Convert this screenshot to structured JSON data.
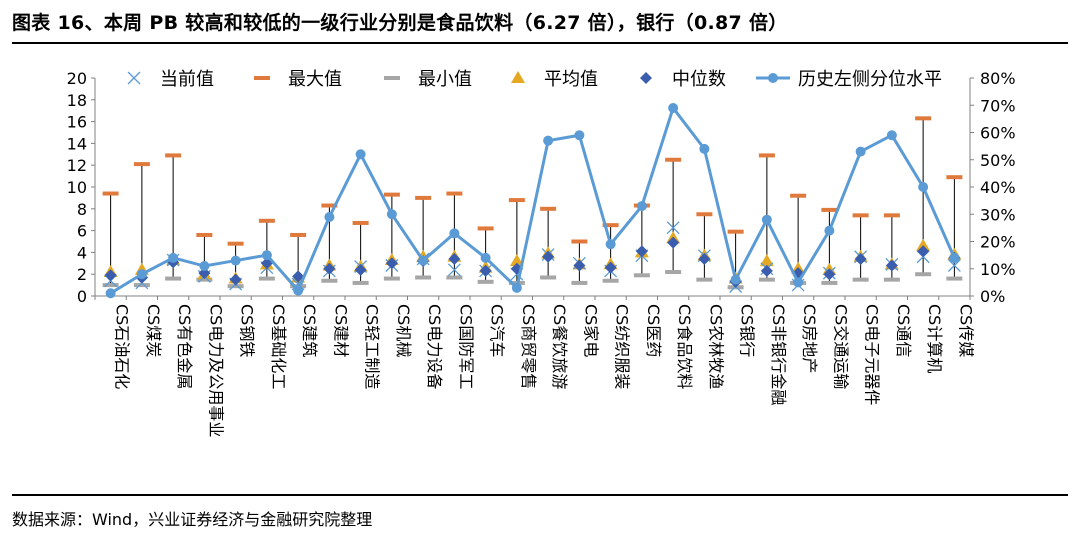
{
  "page": {
    "title": "图表 16、本周 PB 较高和较低的一级行业分别是食品饮料（6.27 倍），银行（0.87 倍）",
    "source": "数据来源：Wind，兴业证券经济与金融研究院整理"
  },
  "chart_data": {
    "type": "scatter",
    "categories": [
      "CS石油石化",
      "CS煤炭",
      "CS有色金属",
      "CS电力及公用事业",
      "CS钢铁",
      "CS基础化工",
      "CS建筑",
      "CS建材",
      "CS轻工制造",
      "CS机械",
      "CS电力设备",
      "CS国防军工",
      "CS汽车",
      "CS商贸零售",
      "CS餐饮旅游",
      "CS家电",
      "CS纺织服装",
      "CS医药",
      "CS食品饮料",
      "CS农林牧渔",
      "CS银行",
      "CS非银行金融",
      "CS房地产",
      "CS交通运输",
      "CS电子元器件",
      "CS通信",
      "CS计算机",
      "CS传媒"
    ],
    "y_left": {
      "ylim": [
        0,
        20
      ],
      "ticks": [
        "0",
        "2",
        "4",
        "6",
        "8",
        "10",
        "12",
        "14",
        "16",
        "18",
        "20"
      ]
    },
    "y_right": {
      "ylim": [
        0,
        80
      ],
      "ticks": [
        "0%",
        "10%",
        "20%",
        "30%",
        "40%",
        "50%",
        "60%",
        "70%",
        "80%"
      ]
    },
    "legend_position": "top",
    "series": [
      {
        "name": "当前值",
        "marker": "x",
        "color": "#5B9BD5",
        "axis": "left",
        "values": [
          1.4,
          1.2,
          3.3,
          1.8,
          1.1,
          2.6,
          1.1,
          2.3,
          2.7,
          2.8,
          3.4,
          2.4,
          2.3,
          2.0,
          3.8,
          3.0,
          2.3,
          3.7,
          6.27,
          3.7,
          0.87,
          2.5,
          1.0,
          2.1,
          3.6,
          2.9,
          3.6,
          2.8
        ]
      },
      {
        "name": "最大值",
        "marker": "dash",
        "color": "#E07A3C",
        "axis": "left",
        "values": [
          9.4,
          12.1,
          12.9,
          5.6,
          4.8,
          6.9,
          5.6,
          8.3,
          6.7,
          9.3,
          9.0,
          9.4,
          6.2,
          8.8,
          8.0,
          5.0,
          6.5,
          8.3,
          12.5,
          7.5,
          5.9,
          12.9,
          9.2,
          7.9,
          7.4,
          7.4,
          16.3,
          10.9
        ]
      },
      {
        "name": "最小值",
        "marker": "dash",
        "color": "#A6A6A6",
        "axis": "left",
        "values": [
          1.0,
          1.0,
          1.6,
          1.5,
          0.9,
          1.6,
          0.9,
          1.4,
          1.2,
          1.6,
          1.7,
          1.7,
          1.3,
          1.2,
          1.7,
          1.2,
          1.4,
          1.9,
          2.2,
          1.5,
          0.8,
          1.5,
          1.2,
          1.2,
          1.5,
          1.5,
          2.0,
          1.6
        ]
      },
      {
        "name": "平均值",
        "marker": "triangle",
        "color": "#E5A823",
        "axis": "left",
        "values": [
          2.2,
          2.4,
          3.3,
          2.0,
          1.6,
          2.9,
          1.7,
          2.8,
          2.7,
          3.3,
          3.6,
          3.6,
          2.6,
          3.2,
          3.9,
          2.9,
          2.9,
          4.0,
          5.3,
          3.7,
          1.6,
          3.2,
          2.5,
          2.4,
          3.6,
          2.9,
          4.6,
          3.8
        ]
      },
      {
        "name": "中位数",
        "marker": "diamond",
        "color": "#3A5DAE",
        "axis": "left",
        "values": [
          1.9,
          1.7,
          3.1,
          2.1,
          1.5,
          3.0,
          1.8,
          2.5,
          2.4,
          3.0,
          3.2,
          3.4,
          2.3,
          2.5,
          3.6,
          2.8,
          2.6,
          4.1,
          4.9,
          3.4,
          1.3,
          2.3,
          2.1,
          2.0,
          3.4,
          2.8,
          4.1,
          3.5
        ]
      },
      {
        "name": "历史左侧分位水平",
        "marker": "line-circle",
        "color": "#5B9BD5",
        "axis": "right",
        "values": [
          1,
          8,
          14,
          11,
          13,
          15,
          2,
          29,
          52,
          30,
          13,
          23,
          14,
          3,
          57,
          59,
          19,
          33,
          69,
          54,
          6,
          28,
          5,
          24,
          53,
          59,
          40,
          14
        ]
      }
    ]
  }
}
